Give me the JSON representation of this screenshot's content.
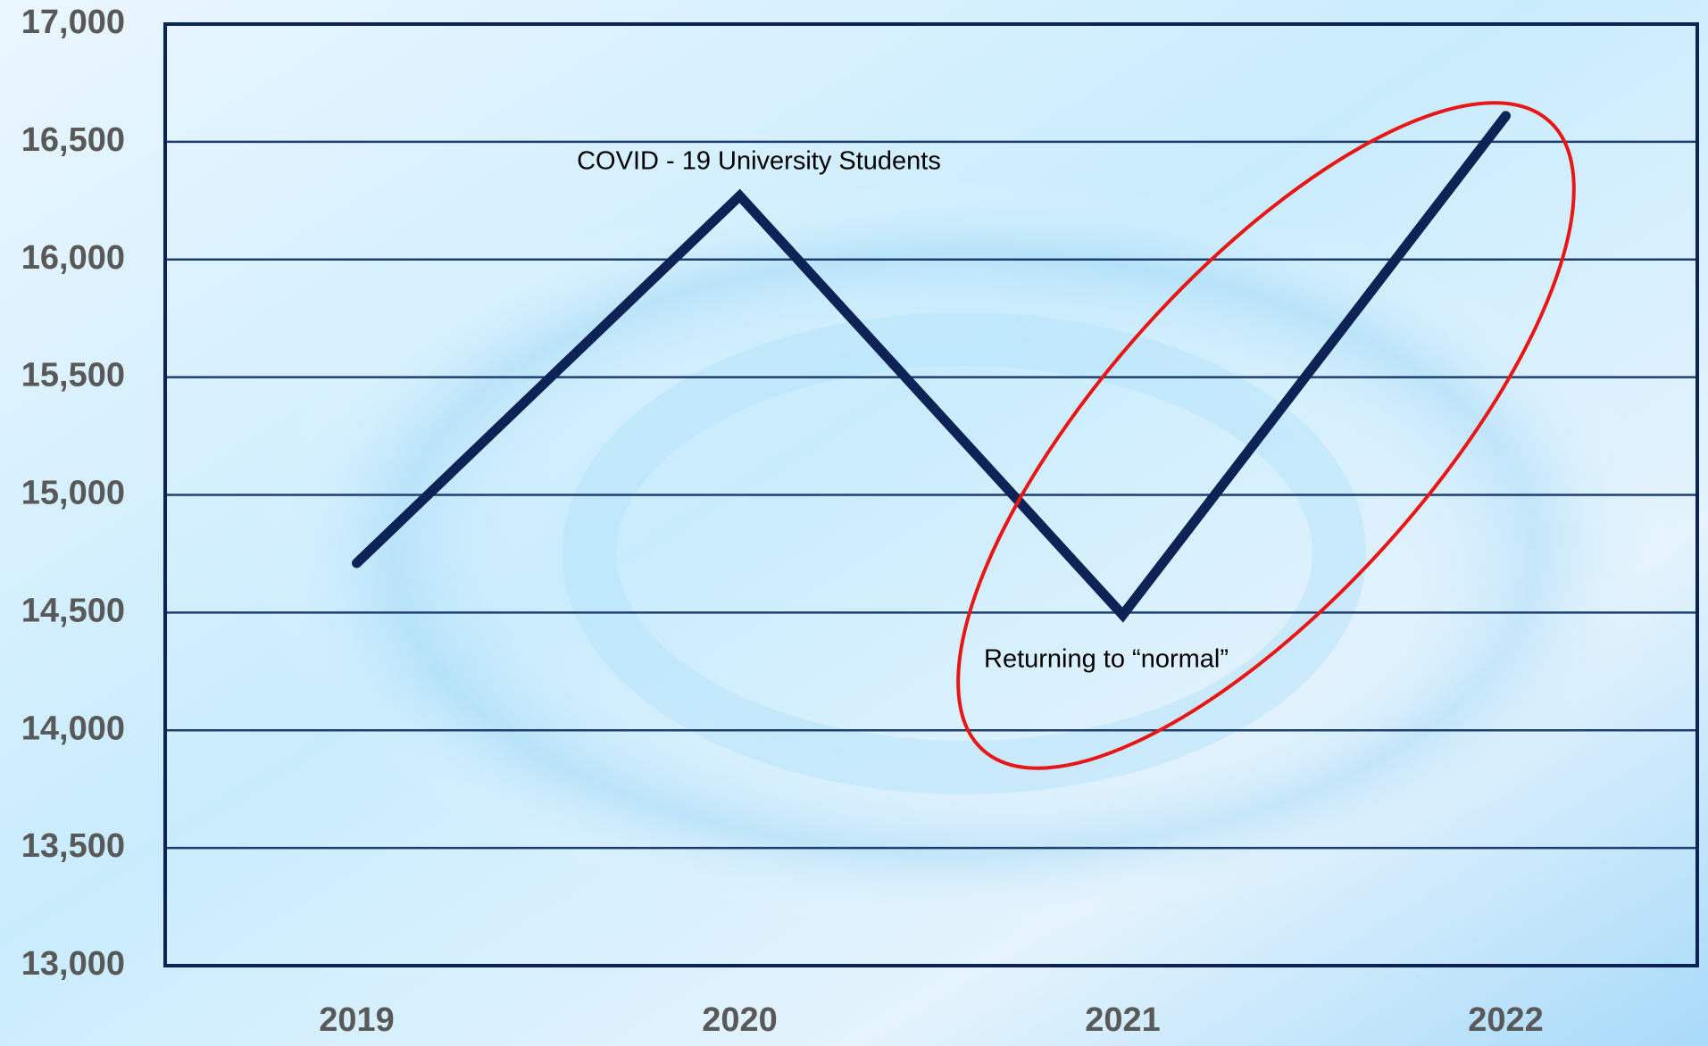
{
  "chart_data": {
    "type": "line",
    "categories": [
      "2019",
      "2020",
      "2021",
      "2022"
    ],
    "values": [
      14710,
      16270,
      14490,
      16610
    ],
    "color": "#0d2356",
    "ylim": [
      13000,
      17000
    ],
    "yticks": [
      {
        "value": 13000,
        "label": "13,000"
      },
      {
        "value": 13500,
        "label": "13,500"
      },
      {
        "value": 14000,
        "label": "14,000"
      },
      {
        "value": 14500,
        "label": "14,500"
      },
      {
        "value": 15000,
        "label": "15,000"
      },
      {
        "value": 15500,
        "label": "15,500"
      },
      {
        "value": 16000,
        "label": "16,000"
      },
      {
        "value": 16500,
        "label": "16,500"
      },
      {
        "value": 17000,
        "label": "17,000"
      }
    ],
    "grid": true,
    "annotations": [
      "COVID - 19 University Students",
      "Returning to “normal”"
    ]
  }
}
